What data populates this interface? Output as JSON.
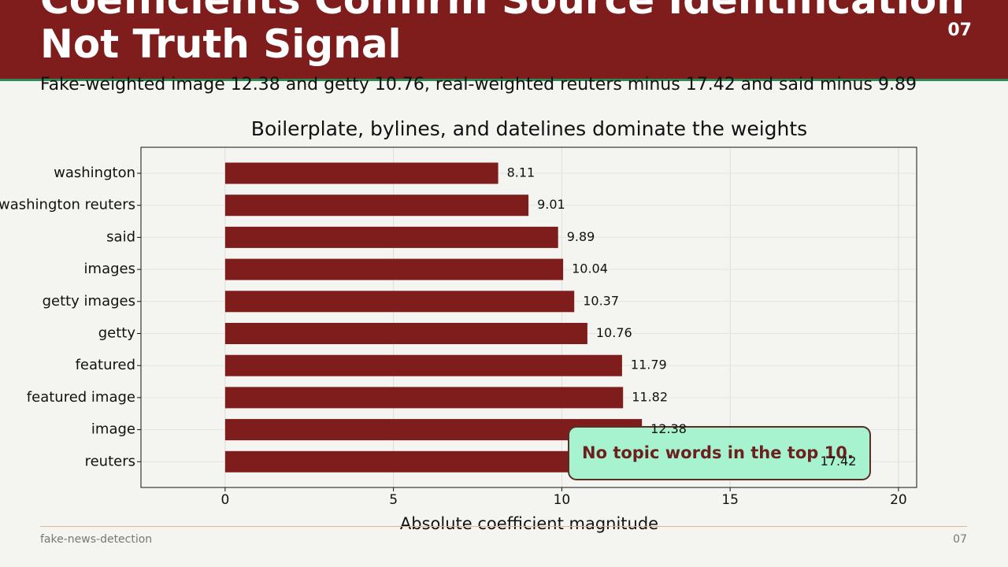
{
  "header": {
    "title": "Coefficients Confirm Source Identification Not Truth Signal",
    "number": "07"
  },
  "subtitle": "Fake-weighted image 12.38 and getty 10.76, real-weighted reuters minus 17.42 and said minus 9.89",
  "chart_data": {
    "type": "barh",
    "title": "Boilerplate, bylines, and datelines dominate the weights",
    "x_label": "Absolute coefficient magnitude",
    "categories": [
      "washington",
      "washington reuters",
      "said",
      "images",
      "getty images",
      "getty",
      "featured",
      "featured image",
      "image",
      "reuters"
    ],
    "values": [
      8.11,
      9.01,
      9.89,
      10.04,
      10.37,
      10.76,
      11.79,
      11.82,
      12.38,
      17.42
    ],
    "color": "#7f1d1d",
    "xlim": [
      -2.5,
      20.54
    ],
    "xticks": [
      0,
      5,
      10,
      15,
      20
    ],
    "grid": true,
    "annotation": "No topic words in the top 10."
  },
  "footer": {
    "left": "fake-news-detection",
    "right": "07"
  }
}
